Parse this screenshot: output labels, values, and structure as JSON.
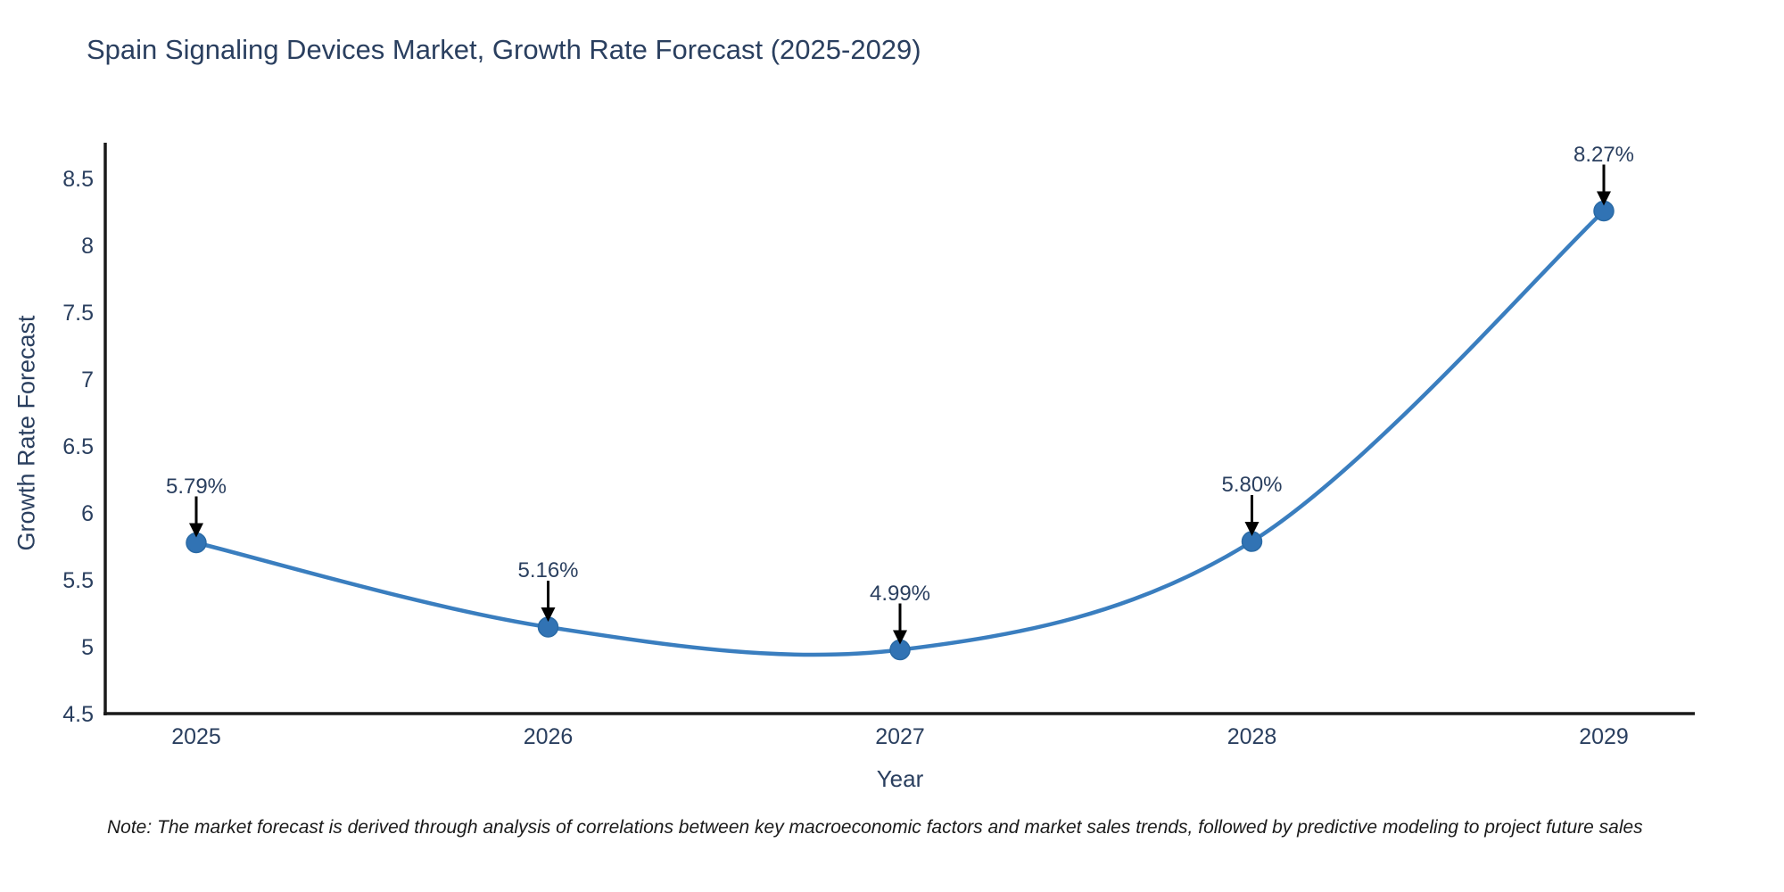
{
  "title": "Spain Signaling Devices Market, Growth Rate Forecast (2025-2029)",
  "note": "Note: The market forecast is derived through analysis of correlations between key macroeconomic factors and market sales trends, followed by predictive modeling to project future sales",
  "chart_data": {
    "type": "line",
    "title": "Spain Signaling Devices Market, Growth Rate Forecast (2025-2029)",
    "xlabel": "Year",
    "ylabel": "Growth Rate Forecast",
    "x": [
      2025,
      2026,
      2027,
      2028,
      2029
    ],
    "values": [
      5.79,
      5.16,
      4.99,
      5.8,
      8.27
    ],
    "labels": [
      "5.79%",
      "5.16%",
      "4.99%",
      "5.80%",
      "8.27%"
    ],
    "xticks": [
      "2025",
      "2026",
      "2027",
      "2028",
      "2029"
    ],
    "yticks": [
      "8.5",
      "8",
      "7.5",
      "7",
      "6.5",
      "6",
      "5.5",
      "5",
      "4.5"
    ],
    "ylim": [
      4.5,
      8.75
    ],
    "grid": false,
    "legend": "none",
    "line_shape": "spline",
    "line_color": "#3a7ebf",
    "marker_color": "#3173b4",
    "marker_edge_color": "#2a6aa5",
    "axis_color": "#1a1a1a",
    "annotation_arrow_color": "#000000",
    "text_color": "#2a3f5f"
  }
}
